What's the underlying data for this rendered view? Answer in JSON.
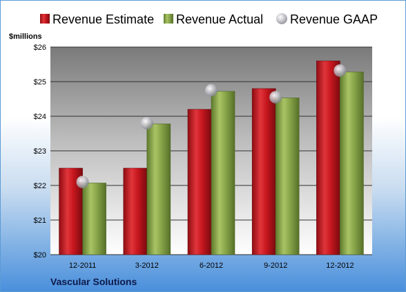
{
  "chart_data": {
    "type": "bar",
    "categories": [
      "12-2011",
      "3-2012",
      "6-2012",
      "9-2012",
      "12-2012"
    ],
    "series": [
      {
        "name": "Revenue Estimate",
        "values": [
          22.5,
          22.5,
          24.2,
          24.8,
          25.6
        ],
        "color": "#c8171f"
      },
      {
        "name": "Revenue Actual",
        "values": [
          22.07,
          23.78,
          24.72,
          24.53,
          25.28
        ],
        "color": "#8aa64a"
      },
      {
        "name": "Revenue GAAP",
        "values": [
          22.1,
          23.8,
          24.75,
          24.55,
          25.32
        ],
        "color": "#b8b8c0",
        "marker": "sphere"
      }
    ],
    "ylabel": "$millions",
    "ylim": [
      20,
      26
    ],
    "yticks": [
      "$20",
      "$21",
      "$22",
      "$23",
      "$24",
      "$25",
      "$26"
    ],
    "grid": true,
    "legend": "top",
    "company": "Vascular Solutions"
  }
}
